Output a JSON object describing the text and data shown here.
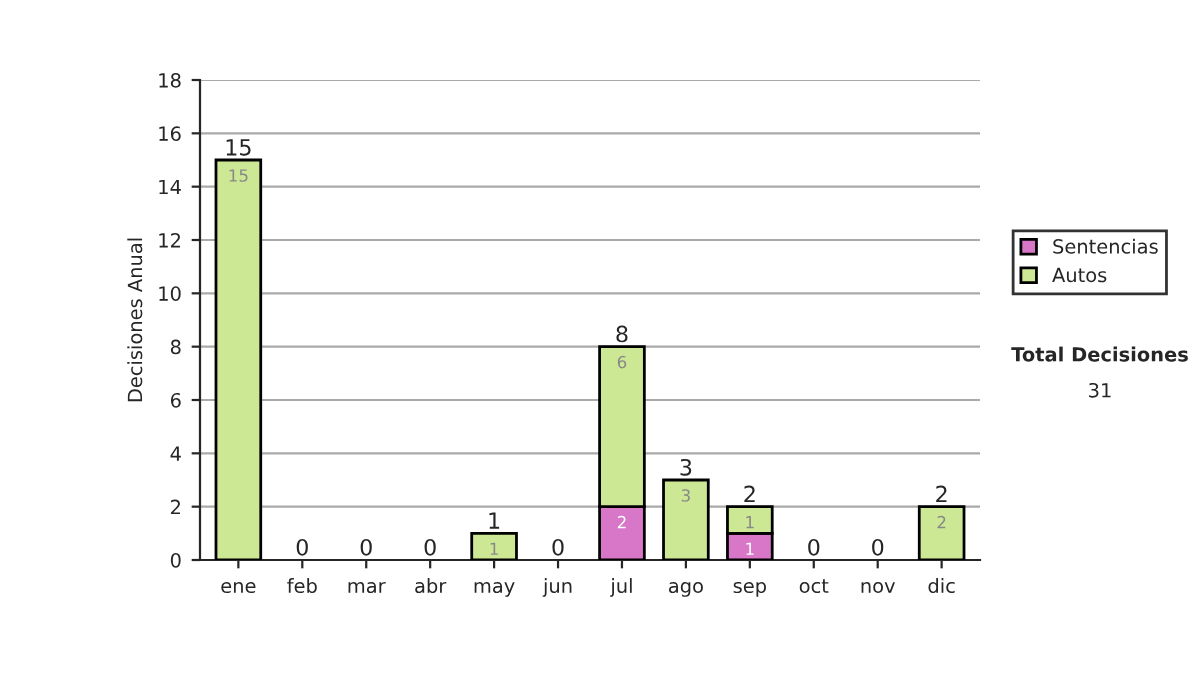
{
  "chart_data": {
    "type": "bar",
    "stacked": true,
    "ylabel": "Decisiones Anual",
    "categories": [
      "ene",
      "feb",
      "mar",
      "abr",
      "may",
      "jun",
      "jul",
      "ago",
      "sep",
      "oct",
      "nov",
      "dic"
    ],
    "series": [
      {
        "name": "Sentencias",
        "color": "#d877c8",
        "values": [
          0,
          0,
          0,
          0,
          0,
          0,
          2,
          0,
          1,
          0,
          0,
          0
        ],
        "value_labels": [
          null,
          null,
          null,
          null,
          null,
          null,
          "2",
          null,
          "1",
          null,
          null,
          null
        ]
      },
      {
        "name": "Autos",
        "color": "#cce894",
        "values": [
          15,
          0,
          0,
          0,
          1,
          0,
          6,
          3,
          1,
          0,
          0,
          2
        ],
        "value_labels": [
          "15",
          null,
          null,
          null,
          "1",
          null,
          "6",
          "3",
          "1",
          null,
          null,
          "2"
        ]
      }
    ],
    "totals": [
      "15",
      "0",
      "0",
      "0",
      "1",
      "0",
      "8",
      "3",
      "2",
      "0",
      "0",
      "2"
    ],
    "ylim": [
      0,
      18
    ],
    "yticks": [
      0,
      2,
      4,
      6,
      8,
      10,
      12,
      14,
      16,
      18
    ],
    "grid": "y",
    "legend": "right",
    "annotations": [
      "Total Decisiones",
      "31"
    ]
  }
}
